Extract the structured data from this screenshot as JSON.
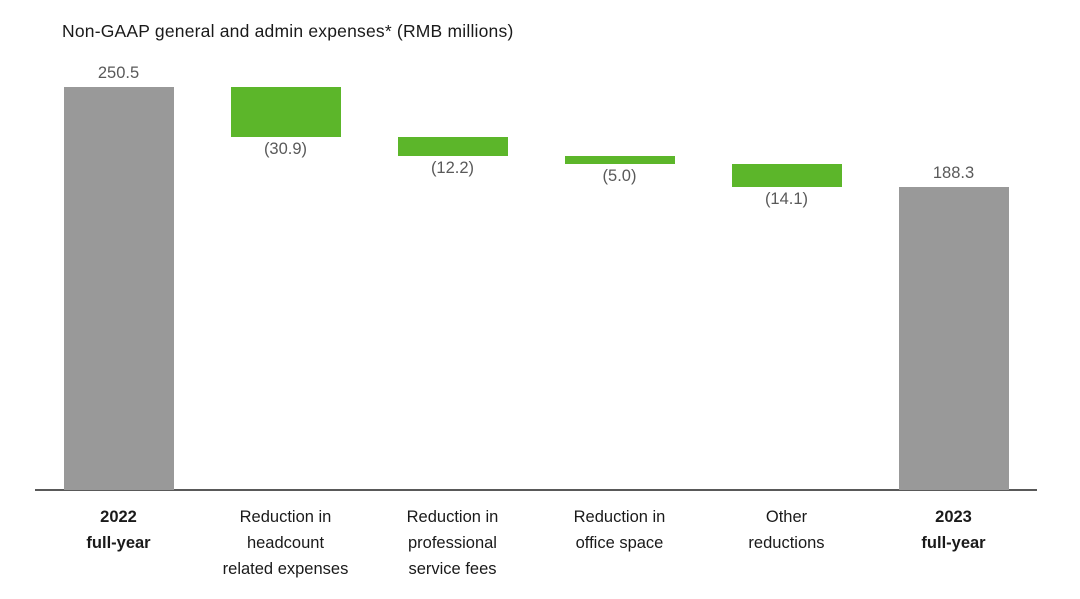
{
  "chart_data": {
    "type": "waterfall",
    "title": "Non-GAAP general and admin expenses* (RMB millions)",
    "unit": "RMB millions",
    "ylim": [
      0,
      250.5
    ],
    "grid": false,
    "legend": "none",
    "categories": [
      "2022 full-year",
      "Reduction in headcount related expenses",
      "Reduction in professional service fees",
      "Reduction in office space",
      "Other reductions",
      "2023 full-year"
    ],
    "bars": [
      {
        "name": "2022-full-year",
        "label_lines": [
          "2022",
          "full-year"
        ],
        "bold": true,
        "kind": "total",
        "value": 250.5,
        "display": "250.5",
        "label_pos": "above"
      },
      {
        "name": "reduction-headcount",
        "label_lines": [
          "Reduction in",
          "headcount",
          "related expenses"
        ],
        "bold": false,
        "kind": "decrease",
        "value": -30.9,
        "display": "(30.9)",
        "label_pos": "below"
      },
      {
        "name": "reduction-professional-fees",
        "label_lines": [
          "Reduction in",
          "professional",
          "service fees"
        ],
        "bold": false,
        "kind": "decrease",
        "value": -12.2,
        "display": "(12.2)",
        "label_pos": "below"
      },
      {
        "name": "reduction-office-space",
        "label_lines": [
          "Reduction in",
          "office space"
        ],
        "bold": false,
        "kind": "decrease",
        "value": -5.0,
        "display": "(5.0)",
        "label_pos": "below"
      },
      {
        "name": "other-reductions",
        "label_lines": [
          "Other",
          "reductions"
        ],
        "bold": false,
        "kind": "decrease",
        "value": -14.1,
        "display": "(14.1)",
        "label_pos": "below"
      },
      {
        "name": "2023-full-year",
        "label_lines": [
          "2023",
          "full-year"
        ],
        "bold": true,
        "kind": "total",
        "value": 188.3,
        "display": "188.3",
        "label_pos": "above"
      }
    ],
    "colors": {
      "total_bar": "#999999",
      "decrease_bar": "#5CB62A",
      "axis_line": "#595959",
      "value_label": "#595959",
      "category_label": "#1a1a1a",
      "background": "#ffffff"
    }
  }
}
